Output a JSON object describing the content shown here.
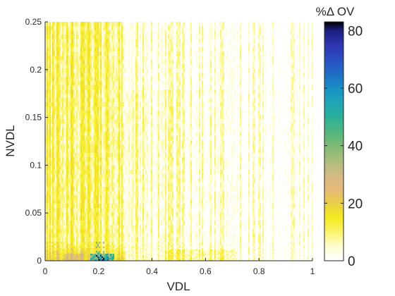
{
  "chart_data": {
    "type": "heatmap",
    "title": "",
    "xlabel": "VDL",
    "ylabel": "NVDL",
    "colorbar_label": "%Δ OV",
    "xlim": [
      0,
      1
    ],
    "ylim": [
      0,
      0.25
    ],
    "clim": [
      0,
      83
    ],
    "x_ticks": [
      0,
      0.2,
      0.4,
      0.6,
      0.8,
      1
    ],
    "x_tick_labels": [
      "0",
      "0.2",
      "0.4",
      "0.6",
      "0.8",
      "1"
    ],
    "y_ticks": [
      0,
      0.05,
      0.1,
      0.15,
      0.2,
      0.25
    ],
    "y_tick_labels": [
      "0",
      "0.05",
      "0.1",
      "0.15",
      "0.2",
      "0.25"
    ],
    "colorbar_ticks": [
      0,
      20,
      40,
      60,
      80
    ],
    "colorbar_tick_labels": [
      "0",
      "20",
      "40",
      "60",
      "80"
    ],
    "colormap": [
      {
        "v": 0,
        "color": "#ffffff"
      },
      {
        "v": 5,
        "color": "#fffdd0"
      },
      {
        "v": 10,
        "color": "#fbf36b"
      },
      {
        "v": 15,
        "color": "#f4ea1e"
      },
      {
        "v": 20,
        "color": "#ebcf4a"
      },
      {
        "v": 25,
        "color": "#e6b97a"
      },
      {
        "v": 30,
        "color": "#d2ba85"
      },
      {
        "v": 35,
        "color": "#a9be7c"
      },
      {
        "v": 40,
        "color": "#7dbb74"
      },
      {
        "v": 45,
        "color": "#4fb680"
      },
      {
        "v": 50,
        "color": "#2aaf99"
      },
      {
        "v": 55,
        "color": "#1ea5b5"
      },
      {
        "v": 60,
        "color": "#1890c6"
      },
      {
        "v": 65,
        "color": "#1f6cc6"
      },
      {
        "v": 70,
        "color": "#2a4fc2"
      },
      {
        "v": 75,
        "color": "#2c34b0"
      },
      {
        "v": 80,
        "color": "#1c1f80"
      },
      {
        "v": 83,
        "color": "#000000"
      }
    ],
    "grid": false,
    "legend": "colorbar-right"
  }
}
